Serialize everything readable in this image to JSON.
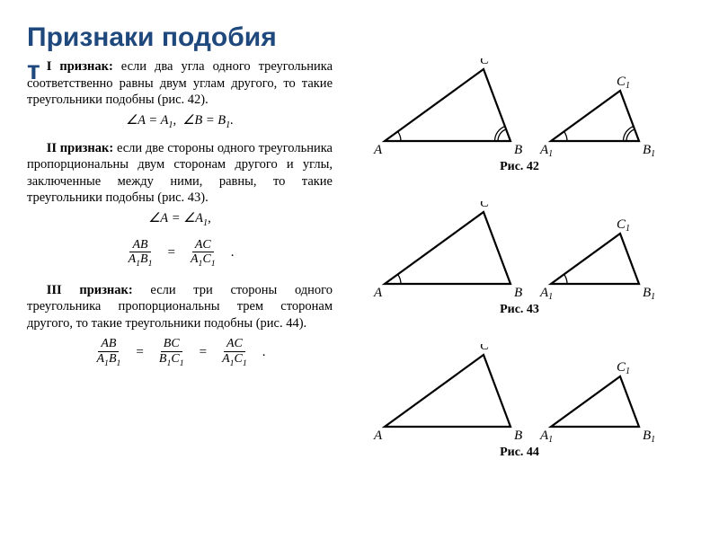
{
  "title": "Признаки подобия",
  "title_tail": "т",
  "criterion1": {
    "label": "I признак:",
    "text": "если два угла одного треугольника соответственно равны двум углам другого, то такие треугольники подобны (рис. 42).",
    "formula": "∠A = A₁,  ∠B = B₁."
  },
  "criterion2": {
    "label": "II признак:",
    "text": "если две стороны одного треугольника пропорциональны двум сторонам другого и углы, заключенные между ними, равны, то такие треугольники подобны (рис. 43).",
    "formula_line": "∠A  =  ∠A₁,",
    "frac1_num": "AB",
    "frac1_den": "A₁B₁",
    "frac2_num": "AC",
    "frac2_den": "A₁C₁"
  },
  "criterion3": {
    "label": "III признак:",
    "text": "если три стороны одного треугольника пропорциональны трем сторонам другого, то такие треугольники подобны (рис. 44).",
    "frac1_num": "AB",
    "frac1_den": "A₁B₁",
    "frac2_num": "BC",
    "frac2_den": "B₁C₁",
    "frac3_num": "AC",
    "frac3_den": "A₁C₁"
  },
  "figures": {
    "fig42": {
      "caption": "Рис. 42",
      "big": {
        "A": [
          0,
          80
        ],
        "B": [
          140,
          80
        ],
        "C": [
          110,
          0
        ],
        "labA": "A",
        "labB": "B",
        "labC": "C",
        "angles": "both"
      },
      "small": {
        "A": [
          0,
          56
        ],
        "B": [
          98,
          56
        ],
        "C": [
          77,
          0
        ],
        "labA": "A₁",
        "labB": "B₁",
        "labC": "C₁",
        "angles": "both"
      }
    },
    "fig43": {
      "caption": "Рис. 43",
      "big": {
        "A": [
          0,
          80
        ],
        "B": [
          140,
          80
        ],
        "C": [
          110,
          0
        ],
        "labA": "A",
        "labB": "B",
        "labC": "C",
        "angles": "A"
      },
      "small": {
        "A": [
          0,
          56
        ],
        "B": [
          98,
          56
        ],
        "C": [
          77,
          0
        ],
        "labA": "A₁",
        "labB": "B₁",
        "labC": "C₁",
        "angles": "A"
      }
    },
    "fig44": {
      "caption": "Рис. 44",
      "big": {
        "A": [
          0,
          80
        ],
        "B": [
          140,
          80
        ],
        "C": [
          110,
          0
        ],
        "labA": "A",
        "labB": "B",
        "labC": "C",
        "angles": "none"
      },
      "small": {
        "A": [
          0,
          56
        ],
        "B": [
          98,
          56
        ],
        "C": [
          77,
          0
        ],
        "labA": "A₁",
        "labB": "B₁",
        "labC": "C₁",
        "angles": "none"
      }
    }
  },
  "style": {
    "title_color": "#1f497d",
    "line_color": "#000000",
    "line_width": 2.2
  }
}
